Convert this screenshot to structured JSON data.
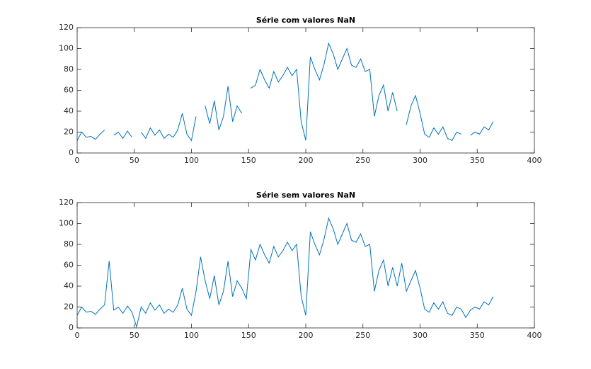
{
  "chart_data": [
    {
      "type": "line",
      "title": "Série com valores NaN",
      "x": [
        0,
        4,
        8,
        12,
        16,
        20,
        24,
        28,
        32,
        36,
        40,
        44,
        48,
        52,
        56,
        60,
        64,
        68,
        72,
        76,
        80,
        84,
        88,
        92,
        96,
        100,
        104,
        108,
        112,
        116,
        120,
        124,
        128,
        132,
        136,
        140,
        144,
        148,
        152,
        156,
        160,
        164,
        168,
        172,
        176,
        180,
        184,
        188,
        192,
        196,
        200,
        204,
        208,
        212,
        216,
        220,
        224,
        228,
        232,
        236,
        240,
        244,
        248,
        252,
        256,
        260,
        264,
        268,
        272,
        276,
        280,
        284,
        288,
        292,
        296,
        300,
        304,
        308,
        312,
        316,
        320,
        324,
        328,
        332,
        336,
        340,
        344,
        348,
        352,
        356,
        360,
        364
      ],
      "series": [
        {
          "color": "#0072bd",
          "values": [
            12,
            20,
            15,
            16,
            13,
            18,
            22,
            null,
            17,
            20,
            14,
            21,
            15,
            null,
            20,
            14,
            24,
            17,
            22,
            14,
            18,
            15,
            22,
            38,
            18,
            12,
            35,
            null,
            45,
            28,
            50,
            22,
            35,
            64,
            30,
            45,
            38,
            null,
            62,
            65,
            80,
            70,
            62,
            78,
            68,
            74,
            82,
            74,
            80,
            30,
            12,
            92,
            80,
            70,
            85,
            105,
            95,
            80,
            90,
            100,
            84,
            82,
            90,
            78,
            80,
            35,
            55,
            65,
            40,
            58,
            40,
            null,
            27,
            45,
            55,
            38,
            18,
            15,
            24,
            18,
            25,
            14,
            12,
            20,
            18,
            null,
            17,
            20,
            18,
            25,
            22,
            30
          ]
        }
      ],
      "xlim": [
        0,
        400
      ],
      "ylim": [
        0,
        120
      ],
      "xticks": [
        0,
        50,
        100,
        150,
        200,
        250,
        300,
        350,
        400
      ],
      "yticks": [
        0,
        20,
        40,
        60,
        80,
        100,
        120
      ]
    },
    {
      "type": "line",
      "title": "Série sem valores NaN",
      "x": [
        0,
        4,
        8,
        12,
        16,
        20,
        24,
        28,
        32,
        36,
        40,
        44,
        48,
        52,
        56,
        60,
        64,
        68,
        72,
        76,
        80,
        84,
        88,
        92,
        96,
        100,
        104,
        108,
        112,
        116,
        120,
        124,
        128,
        132,
        136,
        140,
        144,
        148,
        152,
        156,
        160,
        164,
        168,
        172,
        176,
        180,
        184,
        188,
        192,
        196,
        200,
        204,
        208,
        212,
        216,
        220,
        224,
        228,
        232,
        236,
        240,
        244,
        248,
        252,
        256,
        260,
        264,
        268,
        272,
        276,
        280,
        284,
        288,
        292,
        296,
        300,
        304,
        308,
        312,
        316,
        320,
        324,
        328,
        332,
        336,
        340,
        344,
        348,
        352,
        356,
        360,
        364
      ],
      "series": [
        {
          "color": "#0072bd",
          "values": [
            12,
            20,
            15,
            16,
            13,
            18,
            22,
            64,
            17,
            20,
            14,
            21,
            15,
            1,
            20,
            14,
            24,
            17,
            22,
            14,
            18,
            15,
            22,
            38,
            18,
            12,
            35,
            68,
            45,
            28,
            50,
            22,
            35,
            64,
            30,
            45,
            38,
            28,
            75,
            65,
            80,
            70,
            62,
            78,
            68,
            74,
            82,
            74,
            80,
            30,
            12,
            92,
            80,
            70,
            85,
            105,
            95,
            80,
            90,
            100,
            84,
            82,
            90,
            78,
            80,
            35,
            55,
            65,
            40,
            58,
            40,
            62,
            35,
            45,
            55,
            38,
            18,
            15,
            24,
            18,
            25,
            14,
            12,
            20,
            18,
            10,
            17,
            20,
            18,
            25,
            22,
            30
          ]
        }
      ],
      "xlim": [
        0,
        400
      ],
      "ylim": [
        0,
        120
      ],
      "xticks": [
        0,
        50,
        100,
        150,
        200,
        250,
        300,
        350,
        400
      ],
      "yticks": [
        0,
        20,
        40,
        60,
        80,
        100,
        120
      ]
    }
  ]
}
